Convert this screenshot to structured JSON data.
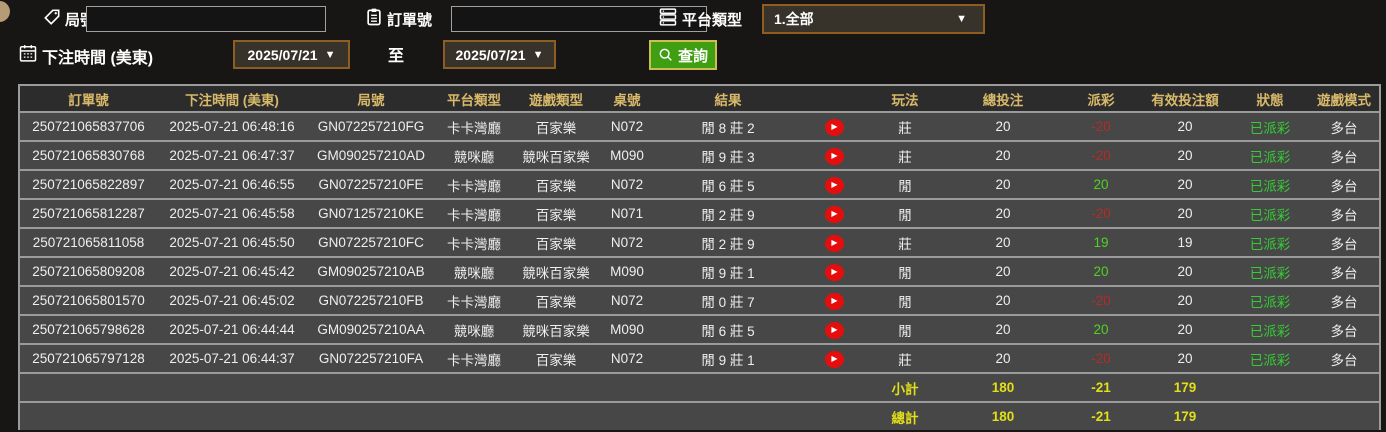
{
  "filters": {
    "game_no_label": "局號",
    "game_no_value": "",
    "order_no_label": "訂單號",
    "order_no_value": "",
    "platform_label": "平台類型",
    "platform_value": "1.全部",
    "dropdown_arrow": "▼",
    "bet_time_label": "下注時間 (美東)",
    "date_from": "2025/07/21",
    "to_label": "至",
    "date_to": "2025/07/21",
    "search_label": "查詢"
  },
  "table": {
    "headers": [
      "訂單號",
      "下注時間 (美東)",
      "局號",
      "平台類型",
      "遊戲類型",
      "桌號",
      "結果",
      "",
      "玩法",
      "總投注",
      "派彩",
      "有效投注額",
      "狀態",
      "遊戲模式"
    ],
    "rows": [
      {
        "order_no": "250721065837706",
        "bet_time": "2025-07-21 06:48:16",
        "game_no": "GN072257210FG",
        "platform": "卡卡灣廳",
        "game_type": "百家樂",
        "table_no": "N072",
        "result": "閒 8 莊 2",
        "play": "莊",
        "total_bet": "20",
        "payout": "-20",
        "valid_bet": "20",
        "status": "已派彩",
        "mode": "多台"
      },
      {
        "order_no": "250721065830768",
        "bet_time": "2025-07-21 06:47:37",
        "game_no": "GM090257210AD",
        "platform": "競咪廳",
        "game_type": "競咪百家樂",
        "table_no": "M090",
        "result": "閒 9 莊 3",
        "play": "莊",
        "total_bet": "20",
        "payout": "-20",
        "valid_bet": "20",
        "status": "已派彩",
        "mode": "多台"
      },
      {
        "order_no": "250721065822897",
        "bet_time": "2025-07-21 06:46:55",
        "game_no": "GN072257210FE",
        "platform": "卡卡灣廳",
        "game_type": "百家樂",
        "table_no": "N072",
        "result": "閒 6 莊 5",
        "play": "閒",
        "total_bet": "20",
        "payout": "20",
        "valid_bet": "20",
        "status": "已派彩",
        "mode": "多台"
      },
      {
        "order_no": "250721065812287",
        "bet_time": "2025-07-21 06:45:58",
        "game_no": "GN071257210KE",
        "platform": "卡卡灣廳",
        "game_type": "百家樂",
        "table_no": "N071",
        "result": "閒 2 莊 9",
        "play": "閒",
        "total_bet": "20",
        "payout": "-20",
        "valid_bet": "20",
        "status": "已派彩",
        "mode": "多台"
      },
      {
        "order_no": "250721065811058",
        "bet_time": "2025-07-21 06:45:50",
        "game_no": "GN072257210FC",
        "platform": "卡卡灣廳",
        "game_type": "百家樂",
        "table_no": "N072",
        "result": "閒 2 莊 9",
        "play": "莊",
        "total_bet": "20",
        "payout": "19",
        "valid_bet": "19",
        "status": "已派彩",
        "mode": "多台"
      },
      {
        "order_no": "250721065809208",
        "bet_time": "2025-07-21 06:45:42",
        "game_no": "GM090257210AB",
        "platform": "競咪廳",
        "game_type": "競咪百家樂",
        "table_no": "M090",
        "result": "閒 9 莊 1",
        "play": "閒",
        "total_bet": "20",
        "payout": "20",
        "valid_bet": "20",
        "status": "已派彩",
        "mode": "多台"
      },
      {
        "order_no": "250721065801570",
        "bet_time": "2025-07-21 06:45:02",
        "game_no": "GN072257210FB",
        "platform": "卡卡灣廳",
        "game_type": "百家樂",
        "table_no": "N072",
        "result": "閒 0 莊 7",
        "play": "閒",
        "total_bet": "20",
        "payout": "-20",
        "valid_bet": "20",
        "status": "已派彩",
        "mode": "多台"
      },
      {
        "order_no": "250721065798628",
        "bet_time": "2025-07-21 06:44:44",
        "game_no": "GM090257210AA",
        "platform": "競咪廳",
        "game_type": "競咪百家樂",
        "table_no": "M090",
        "result": "閒 6 莊 5",
        "play": "閒",
        "total_bet": "20",
        "payout": "20",
        "valid_bet": "20",
        "status": "已派彩",
        "mode": "多台"
      },
      {
        "order_no": "250721065797128",
        "bet_time": "2025-07-21 06:44:37",
        "game_no": "GN072257210FA",
        "platform": "卡卡灣廳",
        "game_type": "百家樂",
        "table_no": "N072",
        "result": "閒 9 莊 1",
        "play": "莊",
        "total_bet": "20",
        "payout": "-20",
        "valid_bet": "20",
        "status": "已派彩",
        "mode": "多台"
      }
    ],
    "subtotal": {
      "label": "小計",
      "total_bet": "180",
      "payout": "-21",
      "valid_bet": "179"
    },
    "total": {
      "label": "總計",
      "total_bet": "180",
      "payout": "-21",
      "valid_bet": "179"
    }
  },
  "colors": {
    "header_gold": "#d8b96a",
    "positive_green": "#4ed321",
    "negative_red": "#b52a2a",
    "status_green": "#35cd35",
    "summary_yellow": "#e3df17",
    "button_green": "#3f9e11",
    "button_border": "#cdbd53",
    "box_border_orange": "#8d5e20",
    "row_bg": "#474747",
    "header_bg": "#2c2c2c",
    "separator": "#9b9b9b",
    "play_button_red": "#e60d0d"
  }
}
